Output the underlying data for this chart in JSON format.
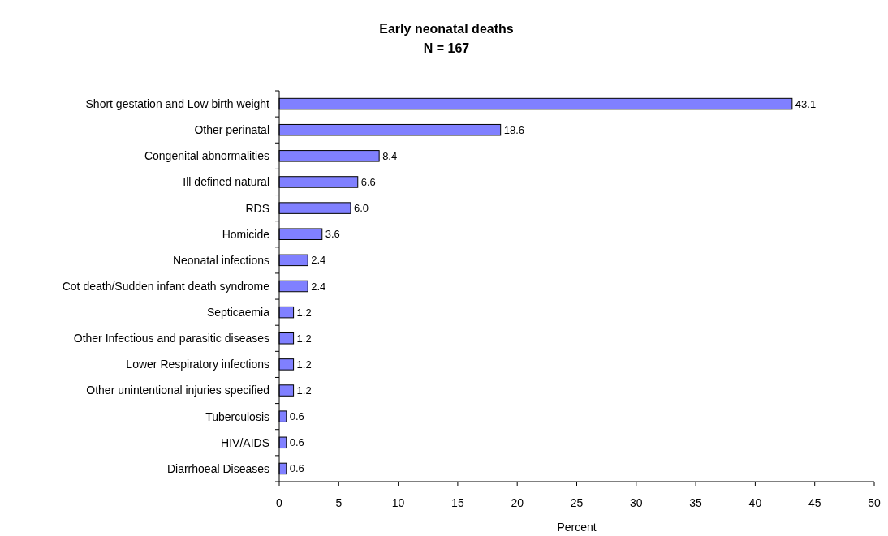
{
  "chart_data": {
    "type": "bar",
    "orientation": "horizontal",
    "title": "Early neonatal deaths",
    "subtitle": "N = 167",
    "xlabel": "Percent",
    "categories": [
      "Short gestation and Low birth weight",
      "Other perinatal",
      "Congenital abnormalities",
      "Ill defined natural",
      "RDS",
      "Homicide",
      "Neonatal infections",
      "Cot death/Sudden infant death syndrome",
      "Septicaemia",
      "Other Infectious and parasitic diseases",
      "Lower Respiratory infections",
      "Other unintentional injuries specified",
      "Tuberculosis",
      "HIV/AIDS",
      "Diarrhoeal Diseases"
    ],
    "values": [
      43.1,
      18.6,
      8.4,
      6.6,
      6.0,
      3.6,
      2.4,
      2.4,
      1.2,
      1.2,
      1.2,
      1.2,
      0.6,
      0.6,
      0.6
    ],
    "value_labels": [
      "43.1",
      "18.6",
      "8.4",
      "6.6",
      "6.0",
      "3.6",
      "2.4",
      "2.4",
      "1.2",
      "1.2",
      "1.2",
      "1.2",
      "0.6",
      "0.6",
      "0.6"
    ],
    "color": "#8080ff",
    "xlim": [
      0,
      50
    ],
    "xticks": [
      0,
      5,
      10,
      15,
      20,
      25,
      30,
      35,
      40,
      45,
      50
    ],
    "grid": false,
    "legend": false
  }
}
